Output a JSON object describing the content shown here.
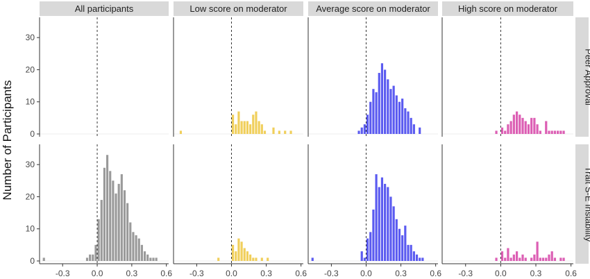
{
  "chart_data": {
    "type": "bar",
    "ylabel": "Number of Participants",
    "xlabel": "",
    "col_facets": [
      "All participants",
      "Low score on moderator",
      "Average score on moderator",
      "High score on moderator"
    ],
    "row_facets": [
      "Peer Approval",
      "Trait S-E Instability"
    ],
    "xlim": [
      -0.5,
      0.62
    ],
    "ylim": [
      0,
      35
    ],
    "x_ticks": [
      -0.3,
      0.0,
      0.3,
      0.6
    ],
    "x_tick_labels": [
      "-0.3",
      "0.0",
      "0.3",
      "0.6"
    ],
    "y_ticks": [
      0,
      10,
      20,
      30
    ],
    "y_tick_labels": [
      "0",
      "10",
      "20",
      "30"
    ],
    "bin_width": 0.025,
    "reference_line_x": 0,
    "colors": [
      "#9a9a9a",
      "#f0cf5c",
      "#5b5bf0",
      "#dc5fb4"
    ],
    "panels": [
      {
        "row": 0,
        "col": 0,
        "bins": []
      },
      {
        "row": 0,
        "col": 1,
        "bins": [
          [
            -0.45,
            1
          ],
          [
            0.0,
            6
          ],
          [
            0.025,
            3
          ],
          [
            0.05,
            7
          ],
          [
            0.075,
            4
          ],
          [
            0.1,
            4
          ],
          [
            0.125,
            4
          ],
          [
            0.15,
            3
          ],
          [
            0.175,
            6
          ],
          [
            0.2,
            7
          ],
          [
            0.225,
            4
          ],
          [
            0.25,
            3
          ],
          [
            0.275,
            1
          ],
          [
            0.35,
            2
          ],
          [
            0.4,
            1
          ],
          [
            0.45,
            1
          ],
          [
            0.5,
            1
          ]
        ]
      },
      {
        "row": 0,
        "col": 2,
        "bins": [
          [
            -0.075,
            1
          ],
          [
            -0.05,
            2
          ],
          [
            -0.025,
            3
          ],
          [
            0.0,
            6
          ],
          [
            0.025,
            10
          ],
          [
            0.05,
            14
          ],
          [
            0.075,
            13
          ],
          [
            0.1,
            19
          ],
          [
            0.125,
            22
          ],
          [
            0.15,
            20
          ],
          [
            0.175,
            17
          ],
          [
            0.2,
            14
          ],
          [
            0.225,
            15
          ],
          [
            0.25,
            12
          ],
          [
            0.275,
            10
          ],
          [
            0.3,
            11
          ],
          [
            0.325,
            8
          ],
          [
            0.35,
            7
          ],
          [
            0.375,
            5
          ],
          [
            0.4,
            3
          ],
          [
            0.45,
            2
          ]
        ]
      },
      {
        "row": 0,
        "col": 3,
        "bins": [
          [
            -0.05,
            1
          ],
          [
            0.0,
            2
          ],
          [
            0.025,
            1
          ],
          [
            0.05,
            3
          ],
          [
            0.075,
            4
          ],
          [
            0.1,
            6
          ],
          [
            0.125,
            7
          ],
          [
            0.15,
            6
          ],
          [
            0.175,
            5
          ],
          [
            0.2,
            4
          ],
          [
            0.225,
            3
          ],
          [
            0.25,
            5
          ],
          [
            0.275,
            5
          ],
          [
            0.3,
            3
          ],
          [
            0.325,
            1
          ],
          [
            0.375,
            4
          ],
          [
            0.4,
            1
          ],
          [
            0.425,
            1
          ],
          [
            0.45,
            1
          ],
          [
            0.475,
            1
          ],
          [
            0.5,
            1
          ],
          [
            0.525,
            1
          ]
        ]
      },
      {
        "row": 1,
        "col": 0,
        "bins": [
          [
            -0.475,
            1
          ],
          [
            -0.1,
            1
          ],
          [
            -0.075,
            2
          ],
          [
            -0.05,
            2
          ],
          [
            -0.025,
            5
          ],
          [
            0.0,
            13
          ],
          [
            0.025,
            19
          ],
          [
            0.05,
            29
          ],
          [
            0.075,
            33
          ],
          [
            0.1,
            28
          ],
          [
            0.125,
            25
          ],
          [
            0.15,
            21
          ],
          [
            0.175,
            24
          ],
          [
            0.2,
            27
          ],
          [
            0.225,
            22
          ],
          [
            0.25,
            18
          ],
          [
            0.275,
            12
          ],
          [
            0.3,
            9
          ],
          [
            0.325,
            8
          ],
          [
            0.35,
            7
          ],
          [
            0.375,
            5
          ],
          [
            0.4,
            3
          ],
          [
            0.425,
            2
          ],
          [
            0.45,
            1
          ],
          [
            0.475,
            1
          ],
          [
            0.5,
            1
          ]
        ]
      },
      {
        "row": 1,
        "col": 1,
        "bins": [
          [
            -0.125,
            1
          ],
          [
            0.0,
            5
          ],
          [
            0.025,
            3
          ],
          [
            0.05,
            7
          ],
          [
            0.075,
            6
          ],
          [
            0.1,
            4
          ],
          [
            0.125,
            3
          ],
          [
            0.15,
            2
          ],
          [
            0.175,
            1
          ],
          [
            0.2,
            1
          ],
          [
            0.25,
            1
          ],
          [
            0.3,
            1
          ]
        ]
      },
      {
        "row": 1,
        "col": 2,
        "bins": [
          [
            -0.475,
            1
          ],
          [
            -0.05,
            3
          ],
          [
            -0.025,
            1
          ],
          [
            0.0,
            7
          ],
          [
            0.025,
            9
          ],
          [
            0.05,
            16
          ],
          [
            0.075,
            27
          ],
          [
            0.1,
            23
          ],
          [
            0.125,
            26
          ],
          [
            0.15,
            24
          ],
          [
            0.175,
            23
          ],
          [
            0.2,
            20
          ],
          [
            0.225,
            17
          ],
          [
            0.25,
            13
          ],
          [
            0.275,
            10
          ],
          [
            0.3,
            8
          ],
          [
            0.325,
            11
          ],
          [
            0.35,
            5
          ],
          [
            0.375,
            5
          ],
          [
            0.4,
            3
          ],
          [
            0.425,
            2
          ],
          [
            0.45,
            1
          ],
          [
            0.475,
            1
          ]
        ]
      },
      {
        "row": 1,
        "col": 3,
        "bins": [
          [
            -0.05,
            1
          ],
          [
            0.0,
            3
          ],
          [
            0.025,
            1
          ],
          [
            0.05,
            4
          ],
          [
            0.075,
            1
          ],
          [
            0.1,
            2
          ],
          [
            0.125,
            3
          ],
          [
            0.15,
            1
          ],
          [
            0.175,
            2
          ],
          [
            0.2,
            1
          ],
          [
            0.25,
            1
          ],
          [
            0.275,
            2
          ],
          [
            0.3,
            6
          ],
          [
            0.325,
            1
          ],
          [
            0.35,
            1
          ],
          [
            0.375,
            1
          ],
          [
            0.4,
            2
          ],
          [
            0.425,
            3
          ],
          [
            0.45,
            1
          ],
          [
            0.5,
            1
          ],
          [
            0.525,
            1
          ]
        ]
      }
    ]
  }
}
